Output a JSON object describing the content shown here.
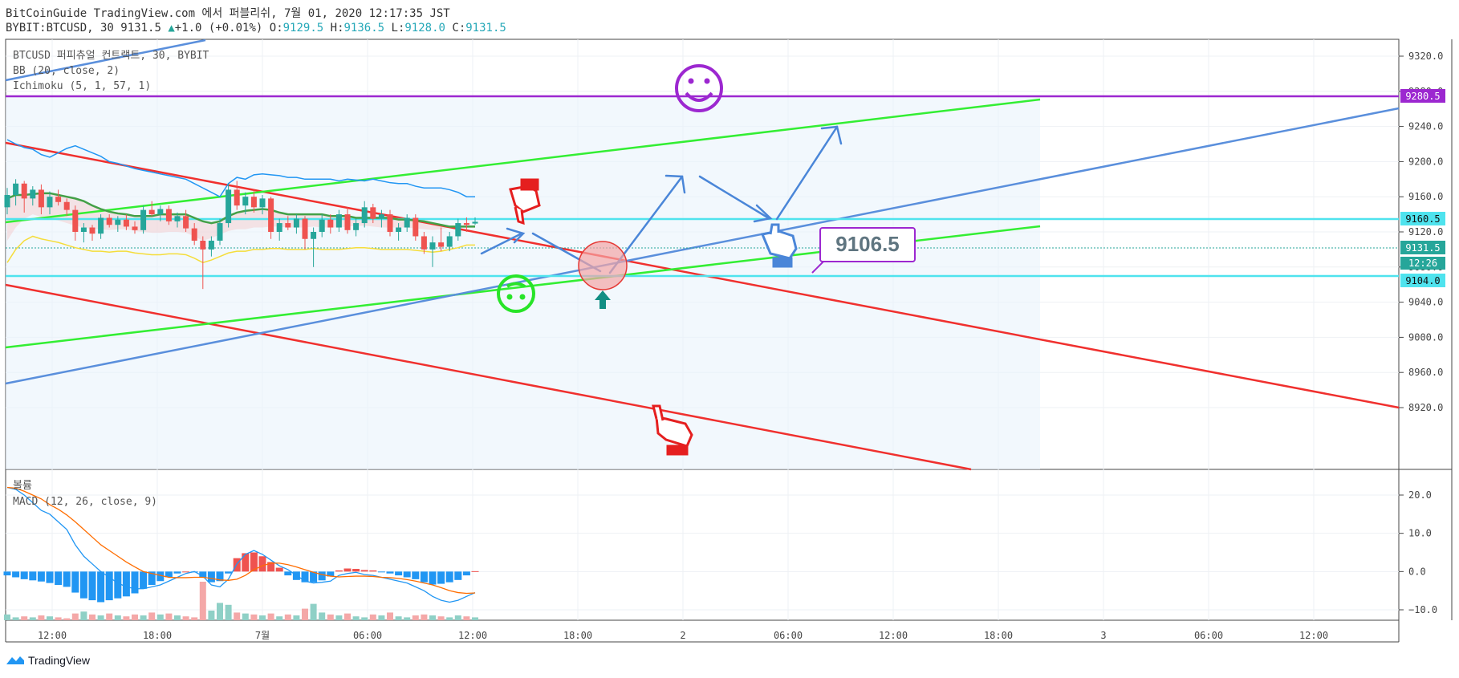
{
  "header": {
    "publish_line": "BitCoinGuide TradingView.com 에서 퍼블리쉬, 7월 01, 2020 12:17:35 JST",
    "symbol": "BYBIT:BTCUSD, 30",
    "last": "9131.5",
    "change": "+1.0 (+0.01%)",
    "o_label": "O:",
    "o": "9129.5",
    "h_label": "H:",
    "h": "9136.5",
    "l_label": "L:",
    "l": "9128.0",
    "c_label": "C:",
    "c": "9131.5"
  },
  "legend": {
    "main": "BTCUSD 퍼피츄얼 컨트랙트, 30, BYBIT",
    "bb": "BB (20, close, 2)",
    "ichimoku": "Ichimoku (5, 1, 57, 1)",
    "volume": "볼륨",
    "macd": "MACD (12, 26, close, 9)"
  },
  "footer": {
    "brand": "TradingView"
  },
  "colors": {
    "up": "#26a69a",
    "down": "#ef5350",
    "bb": "#2196f3",
    "bb_mid": "#43a047",
    "ichimoku_yellow": "#f5dd3b",
    "red_line": "#f0302e",
    "green_line": "#33ee33",
    "blue_line": "#5a8fdc",
    "cyan_line": "#4fe3ee",
    "purple": "#9c27d0",
    "macd": "#2196f3",
    "signal": "#ff6d00"
  },
  "chart_data": [
    {
      "type": "candlestick",
      "title": "BTCUSD 퍼피츄얼 컨트랙트, 30, BYBIT",
      "ylim": [
        8915,
        9335
      ],
      "y_ticks": [
        9320,
        9280,
        9240,
        9200,
        9160,
        9120,
        9080,
        9040,
        9000,
        8960,
        8920
      ],
      "x_ticks": [
        "12:00",
        "18:00",
        "7월",
        "06:00",
        "12:00",
        "18:00",
        "2",
        "06:00",
        "12:00",
        "18:00",
        "3",
        "06:00",
        "12:00"
      ],
      "candles": [
        {
          "t": 0,
          "o": 9148,
          "h": 9170,
          "l": 9140,
          "c": 9162
        },
        {
          "t": 1,
          "o": 9162,
          "h": 9180,
          "l": 9150,
          "c": 9175
        },
        {
          "t": 2,
          "o": 9175,
          "h": 9178,
          "l": 9142,
          "c": 9158
        },
        {
          "t": 3,
          "o": 9158,
          "h": 9172,
          "l": 9150,
          "c": 9168
        },
        {
          "t": 4,
          "o": 9168,
          "h": 9174,
          "l": 9140,
          "c": 9148
        },
        {
          "t": 5,
          "o": 9148,
          "h": 9166,
          "l": 9140,
          "c": 9160
        },
        {
          "t": 6,
          "o": 9160,
          "h": 9168,
          "l": 9150,
          "c": 9154
        },
        {
          "t": 7,
          "o": 9154,
          "h": 9158,
          "l": 9138,
          "c": 9145
        },
        {
          "t": 8,
          "o": 9145,
          "h": 9150,
          "l": 9110,
          "c": 9120
        },
        {
          "t": 9,
          "o": 9120,
          "h": 9130,
          "l": 9108,
          "c": 9125
        },
        {
          "t": 10,
          "o": 9125,
          "h": 9128,
          "l": 9110,
          "c": 9118
        },
        {
          "t": 11,
          "o": 9118,
          "h": 9140,
          "l": 9112,
          "c": 9136
        },
        {
          "t": 12,
          "o": 9136,
          "h": 9140,
          "l": 9125,
          "c": 9128
        },
        {
          "t": 13,
          "o": 9128,
          "h": 9138,
          "l": 9120,
          "c": 9134
        },
        {
          "t": 14,
          "o": 9134,
          "h": 9140,
          "l": 9122,
          "c": 9126
        },
        {
          "t": 15,
          "o": 9126,
          "h": 9132,
          "l": 9118,
          "c": 9122
        },
        {
          "t": 16,
          "o": 9122,
          "h": 9150,
          "l": 9118,
          "c": 9145
        },
        {
          "t": 17,
          "o": 9145,
          "h": 9155,
          "l": 9138,
          "c": 9140
        },
        {
          "t": 18,
          "o": 9140,
          "h": 9150,
          "l": 9132,
          "c": 9146
        },
        {
          "t": 19,
          "o": 9146,
          "h": 9150,
          "l": 9128,
          "c": 9132
        },
        {
          "t": 20,
          "o": 9132,
          "h": 9142,
          "l": 9125,
          "c": 9138
        },
        {
          "t": 21,
          "o": 9138,
          "h": 9145,
          "l": 9120,
          "c": 9124
        },
        {
          "t": 22,
          "o": 9124,
          "h": 9130,
          "l": 9105,
          "c": 9110
        },
        {
          "t": 23,
          "o": 9110,
          "h": 9115,
          "l": 9055,
          "c": 9100
        },
        {
          "t": 24,
          "o": 9100,
          "h": 9115,
          "l": 9092,
          "c": 9110
        },
        {
          "t": 25,
          "o": 9110,
          "h": 9135,
          "l": 9105,
          "c": 9130
        },
        {
          "t": 26,
          "o": 9130,
          "h": 9175,
          "l": 9125,
          "c": 9168
        },
        {
          "t": 27,
          "o": 9168,
          "h": 9178,
          "l": 9145,
          "c": 9150
        },
        {
          "t": 28,
          "o": 9150,
          "h": 9165,
          "l": 9140,
          "c": 9160
        },
        {
          "t": 29,
          "o": 9160,
          "h": 9168,
          "l": 9142,
          "c": 9148
        },
        {
          "t": 30,
          "o": 9148,
          "h": 9162,
          "l": 9140,
          "c": 9158
        },
        {
          "t": 31,
          "o": 9158,
          "h": 9160,
          "l": 9112,
          "c": 9120
        },
        {
          "t": 32,
          "o": 9120,
          "h": 9135,
          "l": 9110,
          "c": 9130
        },
        {
          "t": 33,
          "o": 9130,
          "h": 9138,
          "l": 9122,
          "c": 9125
        },
        {
          "t": 34,
          "o": 9125,
          "h": 9140,
          "l": 9118,
          "c": 9135
        },
        {
          "t": 35,
          "o": 9135,
          "h": 9138,
          "l": 9100,
          "c": 9112
        },
        {
          "t": 36,
          "o": 9112,
          "h": 9125,
          "l": 9080,
          "c": 9120
        },
        {
          "t": 37,
          "o": 9120,
          "h": 9140,
          "l": 9114,
          "c": 9134
        },
        {
          "t": 38,
          "o": 9134,
          "h": 9140,
          "l": 9118,
          "c": 9125
        },
        {
          "t": 39,
          "o": 9125,
          "h": 9145,
          "l": 9120,
          "c": 9140
        },
        {
          "t": 40,
          "o": 9140,
          "h": 9148,
          "l": 9118,
          "c": 9122
        },
        {
          "t": 41,
          "o": 9122,
          "h": 9135,
          "l": 9115,
          "c": 9130
        },
        {
          "t": 42,
          "o": 9130,
          "h": 9155,
          "l": 9125,
          "c": 9148
        },
        {
          "t": 43,
          "o": 9148,
          "h": 9152,
          "l": 9130,
          "c": 9135
        },
        {
          "t": 44,
          "o": 9135,
          "h": 9145,
          "l": 9125,
          "c": 9140
        },
        {
          "t": 45,
          "o": 9140,
          "h": 9145,
          "l": 9115,
          "c": 9120
        },
        {
          "t": 46,
          "o": 9120,
          "h": 9130,
          "l": 9110,
          "c": 9125
        },
        {
          "t": 47,
          "o": 9125,
          "h": 9140,
          "l": 9120,
          "c": 9136
        },
        {
          "t": 48,
          "o": 9136,
          "h": 9140,
          "l": 9110,
          "c": 9115
        },
        {
          "t": 49,
          "o": 9115,
          "h": 9120,
          "l": 9095,
          "c": 9100
        },
        {
          "t": 50,
          "o": 9100,
          "h": 9115,
          "l": 9080,
          "c": 9108
        },
        {
          "t": 51,
          "o": 9108,
          "h": 9125,
          "l": 9098,
          "c": 9103
        },
        {
          "t": 52,
          "o": 9103,
          "h": 9120,
          "l": 9098,
          "c": 9115
        },
        {
          "t": 53,
          "o": 9115,
          "h": 9135,
          "l": 9110,
          "c": 9130
        },
        {
          "t": 54,
          "o": 9130,
          "h": 9136.5,
          "l": 9120,
          "c": 9128
        },
        {
          "t": 55,
          "o": 9129.5,
          "h": 9136.5,
          "l": 9128,
          "c": 9131.5
        }
      ],
      "bb_upper": [
        9225,
        9220,
        9216,
        9214,
        9208,
        9205,
        9210,
        9215,
        9218,
        9214,
        9210,
        9206,
        9200,
        9198,
        9195,
        9192,
        9190,
        9188,
        9186,
        9184,
        9182,
        9180,
        9175,
        9170,
        9165,
        9160,
        9175,
        9182,
        9180,
        9185,
        9186,
        9185,
        9184,
        9182,
        9182,
        9180,
        9180,
        9180,
        9180,
        9178,
        9180,
        9179,
        9178,
        9180,
        9178,
        9176,
        9175,
        9175,
        9172,
        9170,
        9170,
        9170,
        9168,
        9165,
        9160,
        9160
      ],
      "bb_middle": [
        9158,
        9162,
        9162,
        9163,
        9164,
        9164,
        9162,
        9160,
        9158,
        9155,
        9150,
        9146,
        9143,
        9141,
        9140,
        9138,
        9138,
        9138,
        9140,
        9140,
        9140,
        9140,
        9136,
        9132,
        9130,
        9132,
        9138,
        9142,
        9144,
        9145,
        9146,
        9145,
        9142,
        9140,
        9140,
        9140,
        9140,
        9140,
        9138,
        9138,
        9138,
        9136,
        9136,
        9136,
        9136,
        9136,
        9134,
        9134,
        9133,
        9132,
        9130,
        9128,
        9126,
        9126,
        9126,
        9126
      ],
      "ichimoku_lead": [
        9085,
        9100,
        9110,
        9115,
        9112,
        9110,
        9108,
        9105,
        9102,
        9100,
        9098,
        9098,
        9097,
        9098,
        9098,
        9096,
        9095,
        9094,
        9094,
        9095,
        9095,
        9094,
        9090,
        9085,
        9088,
        9092,
        9096,
        9098,
        9098,
        9100,
        9100,
        9101,
        9101,
        9100,
        9100,
        9100,
        9101,
        9100,
        9100,
        9100,
        9101,
        9102,
        9102,
        9101,
        9100,
        9100,
        9100,
        9100,
        9099,
        9098,
        9097,
        9098,
        9100,
        9102,
        9105,
        9105
      ],
      "drawings": {
        "horizontal_levels": [
          9280.5,
          9160.5,
          9104.0
        ],
        "callout_value": "9106.5",
        "price_labels": {
          "top": "9280.5",
          "upper": "9160.5",
          "last": "9131.5",
          "countdown": "12:26",
          "lower": "9104.0"
        }
      }
    },
    {
      "type": "bar",
      "title": "볼륨",
      "values": [
        6,
        3,
        4,
        3,
        5,
        4,
        3,
        2,
        7,
        9,
        6,
        5,
        7,
        5,
        4,
        6,
        5,
        8,
        6,
        7,
        5,
        4,
        3,
        40,
        10,
        18,
        16,
        8,
        7,
        6,
        5,
        7,
        4,
        6,
        5,
        12,
        17,
        8,
        6,
        5,
        7,
        4,
        3,
        6,
        5,
        8,
        4,
        3,
        5,
        6,
        5,
        4,
        3,
        5,
        4,
        3
      ],
      "up": [
        1,
        1,
        0,
        1,
        0,
        1,
        0,
        0,
        0,
        1,
        0,
        1,
        0,
        1,
        0,
        0,
        1,
        0,
        1,
        0,
        1,
        0,
        0,
        0,
        1,
        1,
        1,
        0,
        1,
        0,
        1,
        0,
        1,
        0,
        1,
        0,
        1,
        1,
        0,
        1,
        0,
        1,
        1,
        0,
        1,
        0,
        1,
        1,
        0,
        0,
        1,
        0,
        1,
        1,
        0,
        1
      ]
    },
    {
      "type": "line",
      "title": "MACD (12, 26, close, 9)",
      "ylim": [
        -12.5,
        24
      ],
      "y_ticks": [
        20.0,
        10.0,
        0.0,
        -10.0
      ],
      "series": [
        {
          "name": "MACD",
          "values": [
            22,
            21.5,
            20,
            18,
            16,
            15,
            13,
            11,
            7,
            4,
            2,
            0,
            -1.5,
            -3,
            -4,
            -4.5,
            -4.5,
            -4,
            -3.5,
            -2.5,
            -1.5,
            -0.5,
            0,
            -1.2,
            -3.5,
            -4,
            -2,
            2,
            4.5,
            5.5,
            4.5,
            3,
            1.5,
            0.5,
            -1,
            -2.5,
            -3,
            -2.8,
            -2.5,
            -1,
            -0.5,
            -0.2,
            -0.8,
            -1,
            -1.5,
            -2,
            -2.5,
            -3,
            -4,
            -5,
            -6.5,
            -7.5,
            -8,
            -7.5,
            -6.5,
            -5.5
          ]
        },
        {
          "name": "Signal",
          "values": [
            22,
            21.8,
            21,
            20,
            19,
            17.5,
            16.3,
            14.8,
            13,
            11,
            9,
            7,
            5.5,
            4,
            2.5,
            1.2,
            0,
            -0.5,
            -1,
            -1.5,
            -1.6,
            -1.6,
            -1.5,
            -1.5,
            -1.8,
            -2.2,
            -2.3,
            -2,
            -1,
            0.5,
            1.5,
            2.2,
            2.2,
            1.8,
            1.2,
            0.5,
            -0.2,
            -0.8,
            -1.2,
            -1.4,
            -1.3,
            -1.2,
            -1.2,
            -1.3,
            -1.5,
            -1.6,
            -1.8,
            -2.1,
            -2.5,
            -3,
            -3.5,
            -4.2,
            -5,
            -5.5,
            -5.7,
            -5.6
          ]
        },
        {
          "name": "Histogram",
          "values": [
            -1,
            -1.5,
            -2,
            -2.3,
            -2.6,
            -3,
            -3.5,
            -4,
            -5.5,
            -7,
            -7.5,
            -8,
            -7.5,
            -7,
            -6.5,
            -5.7,
            -4.5,
            -3.5,
            -2.5,
            -1.5,
            -0.5,
            0,
            -0.2,
            -1.5,
            -2.8,
            -2.5,
            -0.5,
            3.5,
            4.8,
            5,
            4,
            2.5,
            1,
            -1,
            -2.2,
            -2.8,
            -2.8,
            -2.3,
            -1.3,
            0.3,
            0.8,
            0.7,
            0.4,
            0.3,
            -0.1,
            -0.5,
            -1,
            -1.5,
            -2,
            -2.8,
            -3.4,
            -3.2,
            -2.8,
            -2.2,
            -1,
            0.1
          ]
        }
      ]
    }
  ]
}
